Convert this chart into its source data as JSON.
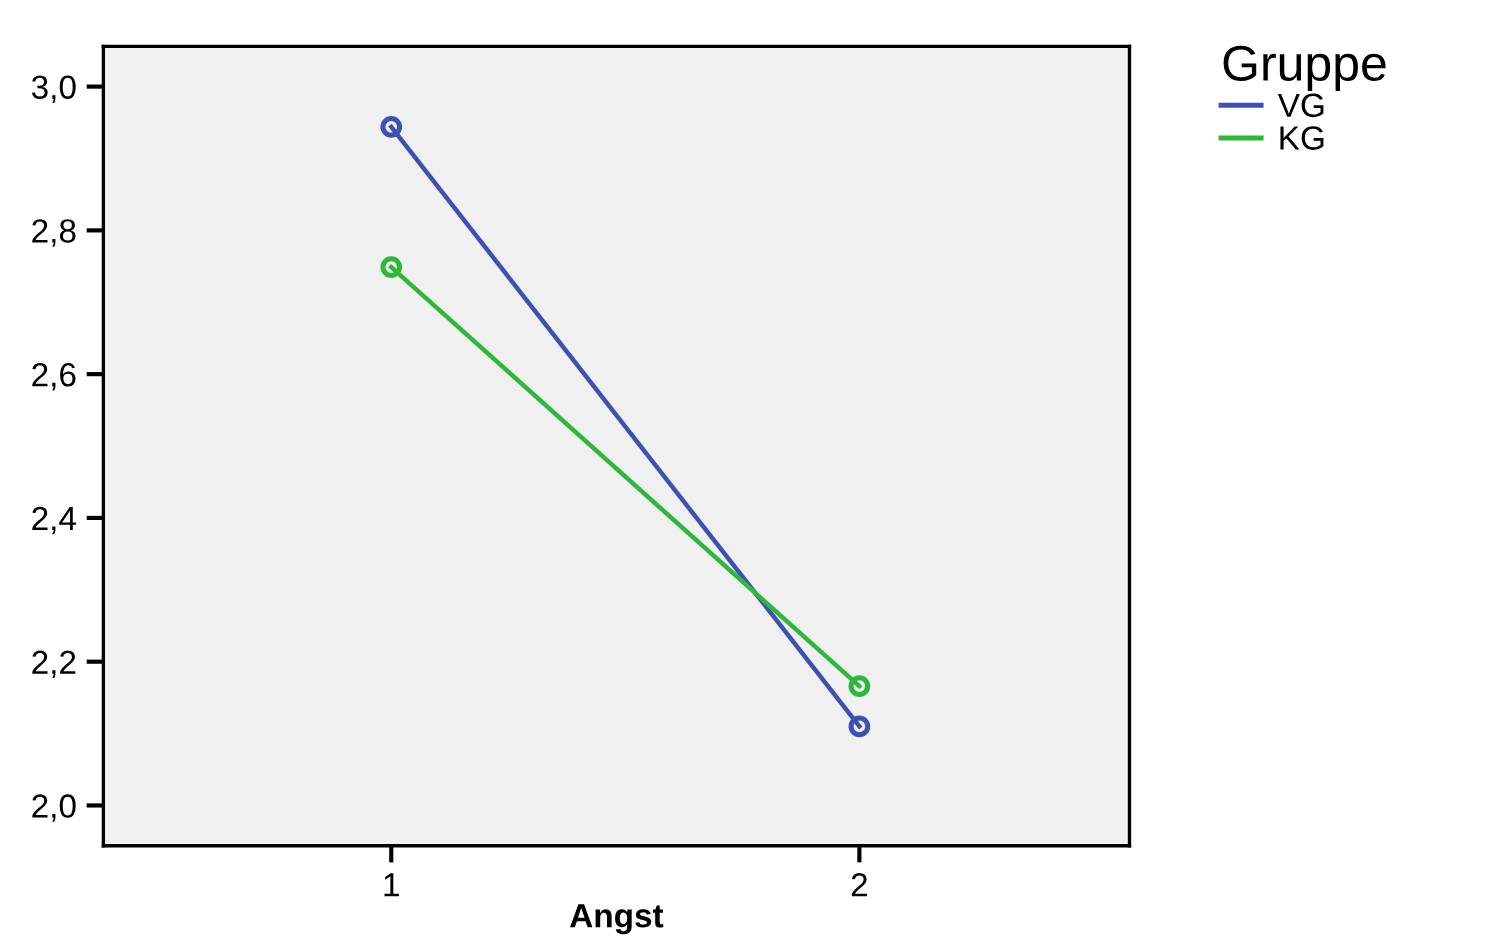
{
  "chart_data": {
    "type": "line",
    "xlabel": "Angst",
    "legend_title": "Gruppe",
    "categories": [
      "1",
      "2"
    ],
    "series": [
      {
        "name": "VG",
        "color": "#3f51b0",
        "values": [
          2.944,
          2.11
        ]
      },
      {
        "name": "KG",
        "color": "#2db83a",
        "values": [
          2.749,
          2.166
        ]
      }
    ],
    "ylim": [
      1.944,
      3.056
    ],
    "yticks": [
      {
        "value": 2.0,
        "label": "2,0"
      },
      {
        "value": 2.2,
        "label": "2,2"
      },
      {
        "value": 2.4,
        "label": "2,4"
      },
      {
        "value": 2.6,
        "label": "2,6"
      },
      {
        "value": 2.8,
        "label": "2,8"
      },
      {
        "value": 3.0,
        "label": "3,0"
      }
    ],
    "marker": "circle",
    "line_style": "solid",
    "grid": false,
    "legend": "top right"
  }
}
